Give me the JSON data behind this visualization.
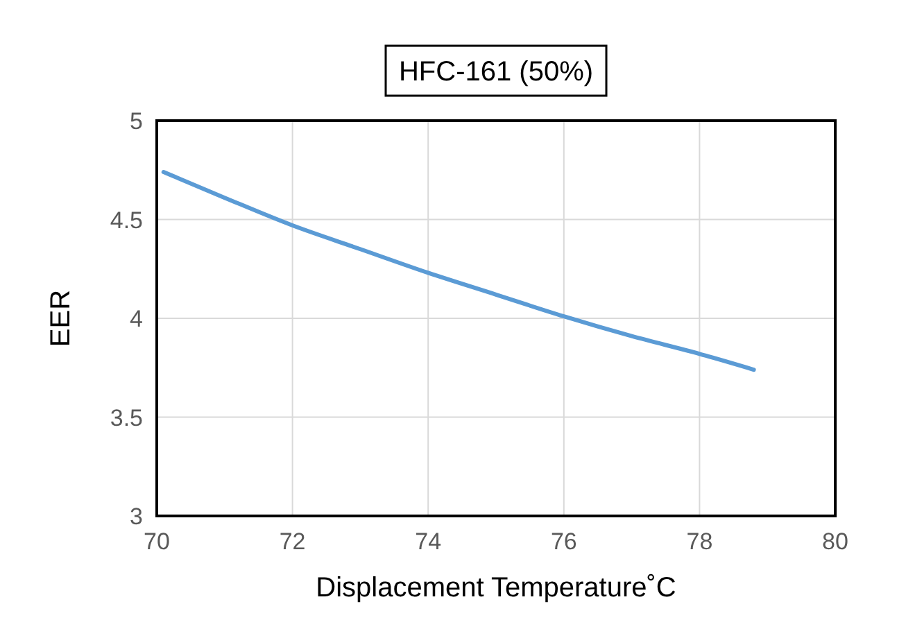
{
  "chart_data": {
    "type": "line",
    "title": "HFC-161 (50%)",
    "xlabel": "Displacement Temperature˚C",
    "ylabel": "EER",
    "series": [
      {
        "color": "#5b9bd5",
        "x": [
          70.1,
          71,
          72,
          73,
          74,
          75,
          76,
          77,
          78,
          78.8
        ],
        "values": [
          4.74,
          4.61,
          4.47,
          4.35,
          4.23,
          4.12,
          4.01,
          3.91,
          3.82,
          3.74
        ]
      }
    ],
    "xlim": [
      70,
      80
    ],
    "xticks": [
      70,
      72,
      74,
      76,
      78,
      80
    ],
    "ylim": [
      3,
      5
    ],
    "yticks": [
      3,
      3.5,
      4,
      4.5,
      5
    ],
    "grid": true,
    "marker": "none",
    "line_style": "solid"
  }
}
